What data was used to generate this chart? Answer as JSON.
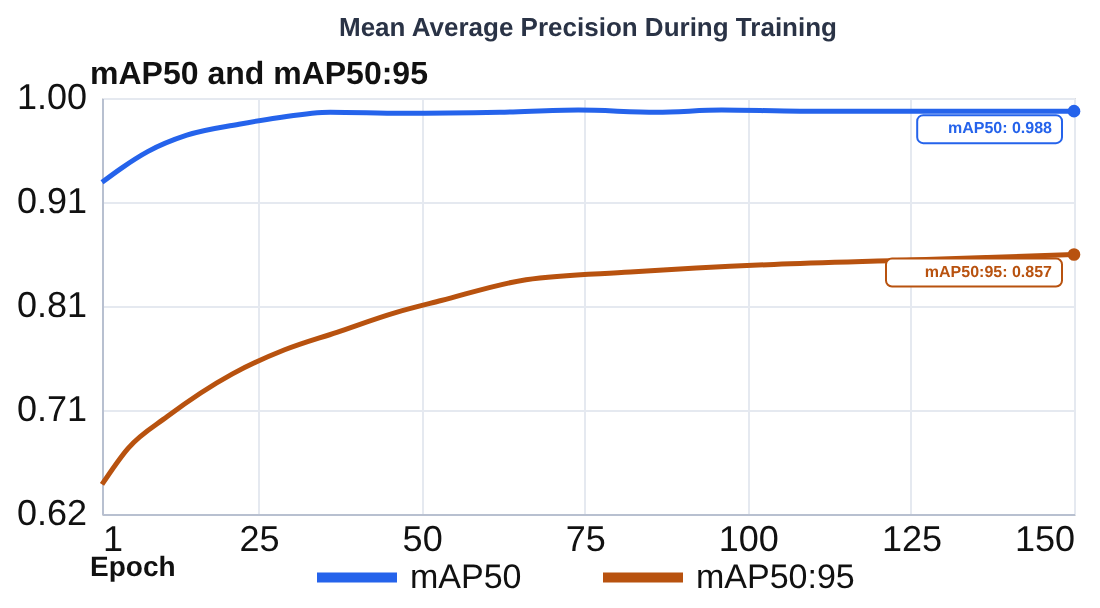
{
  "chart_data": {
    "type": "line",
    "title": "Mean Average Precision During Training",
    "subtitle": "mAP50 and mAP50:95",
    "xlabel": "Epoch",
    "xlim": [
      1,
      150
    ],
    "xticks": [
      1,
      25,
      50,
      75,
      100,
      125,
      150
    ],
    "ylim": [
      0.62,
      1.0
    ],
    "yticks": [
      {
        "value": 0.62,
        "label": "0.62"
      },
      {
        "value": 0.715,
        "label": "0.71"
      },
      {
        "value": 0.81,
        "label": "0.81"
      },
      {
        "value": 0.905,
        "label": "0.91"
      },
      {
        "value": 1.0,
        "label": "1.00"
      }
    ],
    "grid": true,
    "legend": "bottom",
    "marker": "none",
    "line_style": "solid",
    "series": [
      {
        "name": "mAP50",
        "color": "#2563eb",
        "x": [
          1,
          4,
          8,
          14,
          22,
          28,
          36,
          47,
          62,
          74,
          86,
          96,
          108,
          123,
          150
        ],
        "values": [
          0.923,
          0.936,
          0.951,
          0.966,
          0.976,
          0.982,
          0.987,
          0.986,
          0.987,
          0.989,
          0.987,
          0.989,
          0.988,
          0.988,
          0.988
        ]
      },
      {
        "name": "mAP50:95",
        "color": "#b8520f",
        "x": [
          1,
          5,
          11,
          21,
          29,
          37,
          46,
          53,
          66,
          82,
          104,
          125,
          150
        ],
        "values": [
          0.647,
          0.68,
          0.709,
          0.748,
          0.77,
          0.786,
          0.804,
          0.815,
          0.834,
          0.841,
          0.848,
          0.852,
          0.857
        ]
      }
    ],
    "annotations": [
      {
        "text": "mAP50: 0.988",
        "x": 150,
        "y": 0.988
      },
      {
        "text": "mAP50:95: 0.857",
        "x": 150,
        "y": 0.857
      }
    ]
  }
}
